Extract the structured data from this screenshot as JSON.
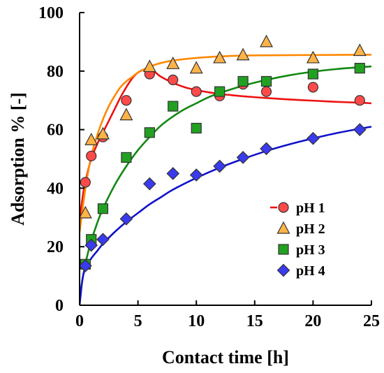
{
  "chart_data": {
    "type": "scatter",
    "xlabel": "Contact time [h]",
    "ylabel": "Adsorption % [-]",
    "xlim": [
      0,
      25
    ],
    "ylim": [
      0,
      100
    ],
    "xticks": [
      0,
      5,
      10,
      15,
      20,
      25
    ],
    "yticks": [
      0,
      20,
      40,
      60,
      80,
      100
    ],
    "grid": false,
    "legend_position": "bottom-right",
    "series": [
      {
        "name": "pH 1",
        "marker": "circle",
        "marker_color": "#ff4a4a",
        "line_color": "#ee1111",
        "x": [
          0.5,
          1,
          2,
          4,
          6,
          8,
          10,
          12,
          14,
          16,
          20,
          24
        ],
        "y": [
          42,
          51,
          57.5,
          70,
          79,
          77,
          73,
          71.5,
          75.5,
          73,
          74.5,
          70
        ],
        "fit_x": [
          0,
          0.3,
          0.6,
          1,
          1.5,
          2,
          2.5,
          3,
          3.5,
          4,
          4.5,
          5,
          5.5,
          6,
          6.5,
          7,
          8,
          9,
          10,
          11,
          12,
          13,
          14,
          16,
          18,
          20,
          22,
          24,
          25
        ],
        "fit_y": [
          29,
          38,
          44,
          50,
          55,
          59,
          63,
          67,
          71,
          74.5,
          77.5,
          79.5,
          80.5,
          80.5,
          79.5,
          78,
          76,
          74.5,
          73.5,
          72.8,
          72.2,
          71.8,
          71.4,
          70.8,
          70.3,
          69.9,
          69.5,
          69.2,
          69
        ]
      },
      {
        "name": "pH 2",
        "marker": "triangle",
        "marker_color": "#ffb347",
        "line_color": "#ff8800",
        "x": [
          0.5,
          1,
          2,
          4,
          6,
          8,
          10,
          12,
          14,
          16,
          20,
          24
        ],
        "y": [
          31.5,
          56.5,
          58.5,
          65,
          81.5,
          82.5,
          81,
          84.5,
          85.5,
          90,
          84.5,
          87
        ],
        "fit_x": [
          0,
          0.5,
          1,
          1.5,
          2,
          2.5,
          3,
          3.5,
          4,
          4.5,
          5,
          6,
          7,
          8,
          10,
          12,
          14,
          16,
          20,
          25
        ],
        "fit_y": [
          25,
          40,
          51,
          58,
          63.5,
          68,
          71.5,
          74.5,
          76.5,
          78,
          79.5,
          81.5,
          82.8,
          83.6,
          84.5,
          85,
          85.3,
          85.4,
          85.5,
          85.6
        ]
      },
      {
        "name": "pH 3",
        "marker": "square",
        "marker_color": "#22a022",
        "line_color": "#118811",
        "x": [
          0.5,
          1,
          2,
          4,
          6,
          8,
          10,
          12,
          14,
          16,
          20,
          24
        ],
        "y": [
          14,
          22.5,
          33,
          50.5,
          59,
          68,
          60.5,
          73,
          76.5,
          76.5,
          79,
          81
        ],
        "fit_x": [
          0,
          0.3,
          0.6,
          1,
          1.5,
          2,
          3,
          4,
          5,
          6,
          7,
          8,
          9,
          10,
          11,
          12,
          14,
          16,
          18,
          20,
          22,
          24,
          25
        ],
        "fit_y": [
          3,
          10,
          16,
          22,
          28,
          33,
          41,
          47.5,
          53,
          57.5,
          61.5,
          64.5,
          67,
          69,
          71,
          72.5,
          75,
          77,
          78.6,
          79.8,
          80.7,
          81.3,
          81.6
        ]
      },
      {
        "name": "pH 4",
        "marker": "diamond",
        "marker_color": "#3a3aee",
        "line_color": "#1111cc",
        "x": [
          0.5,
          1,
          2,
          4,
          6,
          8,
          10,
          12,
          14,
          16,
          20,
          24
        ],
        "y": [
          13.5,
          20.5,
          22.5,
          29.5,
          41.5,
          45,
          44.5,
          47.5,
          50.5,
          53.5,
          57,
          60
        ],
        "fit_x": [
          0,
          0.25,
          0.5,
          1,
          1.5,
          2,
          3,
          4,
          5,
          6,
          7,
          8,
          10,
          12,
          14,
          16,
          18,
          20,
          22,
          24,
          25
        ],
        "fit_y": [
          0,
          9,
          12.5,
          16,
          18.5,
          21,
          25,
          28.5,
          31.5,
          34.5,
          37,
          39.5,
          43.5,
          47,
          50,
          52.7,
          55,
          57,
          58.8,
          60.3,
          61
        ]
      }
    ]
  }
}
